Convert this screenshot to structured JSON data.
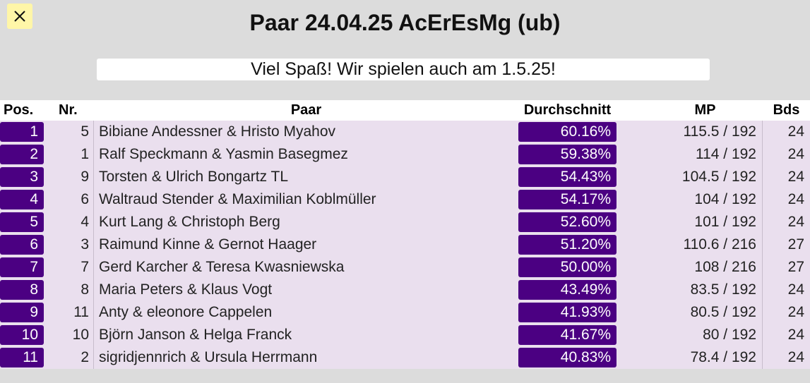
{
  "page": {
    "title": "Paar 24.04.25 AcErEsMg (ub)",
    "banner": "Viel Spaß! Wir spielen auch am 1.5.25!",
    "close_icon": "close-icon"
  },
  "colors": {
    "background": "#dcdcdc",
    "accent": "#4b0082",
    "row_bg": "#eadfee",
    "close_bg": "#fff6a8"
  },
  "table": {
    "headers": {
      "pos": "Pos.",
      "nr": "Nr.",
      "paar": "Paar",
      "avg": "Durchschnitt",
      "mp": "MP",
      "bds": "Bds"
    },
    "rows": [
      {
        "pos": "1",
        "nr": "5",
        "paar": "Bibiane Andessner & Hristo Myahov",
        "avg": "60.16%",
        "mp": "115.5 / 192",
        "bds": "24"
      },
      {
        "pos": "2",
        "nr": "1",
        "paar": "Ralf Speckmann & Yasmin Basegmez",
        "avg": "59.38%",
        "mp": "114 / 192",
        "bds": "24"
      },
      {
        "pos": "3",
        "nr": "9",
        "paar": "Torsten & Ulrich Bongartz TL",
        "avg": "54.43%",
        "mp": "104.5 / 192",
        "bds": "24"
      },
      {
        "pos": "4",
        "nr": "6",
        "paar": "Waltraud Stender & Maximilian Koblmüller",
        "avg": "54.17%",
        "mp": "104 / 192",
        "bds": "24"
      },
      {
        "pos": "5",
        "nr": "4",
        "paar": "Kurt Lang & Christoph Berg",
        "avg": "52.60%",
        "mp": "101 / 192",
        "bds": "24"
      },
      {
        "pos": "6",
        "nr": "3",
        "paar": "Raimund Kinne & Gernot Haager",
        "avg": "51.20%",
        "mp": "110.6 / 216",
        "bds": "27"
      },
      {
        "pos": "7",
        "nr": "7",
        "paar": "Gerd Karcher & Teresa Kwasniewska",
        "avg": "50.00%",
        "mp": "108 / 216",
        "bds": "27"
      },
      {
        "pos": "8",
        "nr": "8",
        "paar": "Maria Peters & Klaus Vogt",
        "avg": "43.49%",
        "mp": "83.5 / 192",
        "bds": "24"
      },
      {
        "pos": "9",
        "nr": "11",
        "paar": "Anty & eleonore Cappelen",
        "avg": "41.93%",
        "mp": "80.5 / 192",
        "bds": "24"
      },
      {
        "pos": "10",
        "nr": "10",
        "paar": "Björn Janson & Helga Franck",
        "avg": "41.67%",
        "mp": "80 / 192",
        "bds": "24"
      },
      {
        "pos": "11",
        "nr": "2",
        "paar": "sigridjennrich & Ursula Herrmann",
        "avg": "40.83%",
        "mp": "78.4 / 192",
        "bds": "24"
      }
    ]
  }
}
